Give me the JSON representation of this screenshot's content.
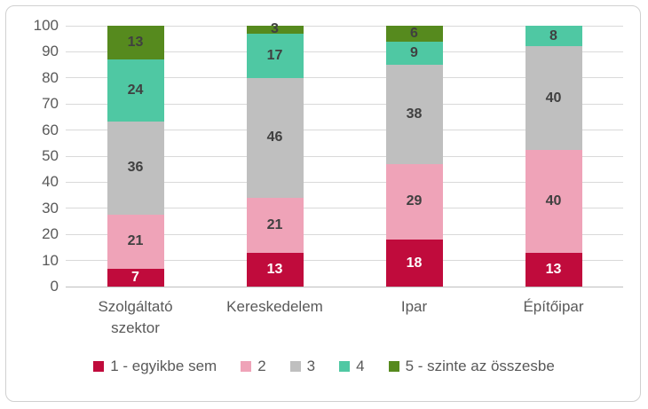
{
  "chart_data": {
    "type": "bar",
    "stacked_percent": true,
    "title": "",
    "xlabel": "",
    "ylabel": "",
    "categories": [
      "Szolgáltató szektor",
      "Kereskedelem",
      "Ipar",
      "Építőipar"
    ],
    "series": [
      {
        "name": "1 - egyikbe sem",
        "color": "#c00b3c",
        "label_color": "#ffffff",
        "values": [
          7,
          13,
          18,
          13
        ]
      },
      {
        "name": "2",
        "color": "#efa3b8",
        "values": [
          21,
          21,
          29,
          40
        ]
      },
      {
        "name": "3",
        "color": "#bfbfbf",
        "values": [
          36,
          46,
          38,
          40
        ]
      },
      {
        "name": "4",
        "color": "#4fc8a3",
        "values": [
          24,
          17,
          9,
          8
        ]
      },
      {
        "name": "5 - szinte az összesbe",
        "color": "#568a1e",
        "values": [
          13,
          3,
          6,
          0
        ]
      }
    ],
    "ylim": [
      0,
      100
    ],
    "yticks": [
      0,
      10,
      20,
      30,
      40,
      50,
      60,
      70,
      80,
      90,
      100
    ],
    "grid": true,
    "legend_position": "bottom",
    "colors": {
      "value_label": "#404040",
      "axis_text": "#595959",
      "gridline": "#d9d9d9",
      "zero_line": "#bfbfbf",
      "frame_border": "#d0d0d0",
      "background": "#ffffff"
    }
  }
}
